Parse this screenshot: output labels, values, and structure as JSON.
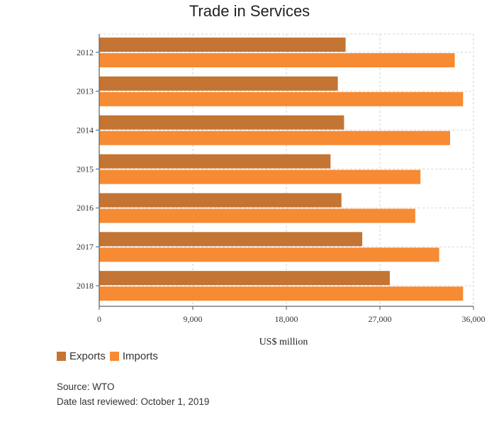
{
  "chart_data": {
    "type": "bar",
    "orientation": "horizontal",
    "title": "Trade in Services",
    "xlabel": "US$ million",
    "ylabel": "",
    "xlim": [
      0,
      36000
    ],
    "xticks": [
      "0",
      "9,000",
      "18,000",
      "27,000",
      "36,000"
    ],
    "xtick_values": [
      0,
      9000,
      18000,
      27000,
      36000
    ],
    "categories": [
      "2012",
      "2013",
      "2014",
      "2015",
      "2016",
      "2017",
      "2018"
    ],
    "series": [
      {
        "name": "Exports",
        "color": "#c47433",
        "values": [
          23700,
          22950,
          23550,
          22250,
          23300,
          25300,
          27950
        ]
      },
      {
        "name": "Imports",
        "color": "#f68b33",
        "values": [
          34200,
          35000,
          33750,
          30900,
          30400,
          32700,
          35000
        ]
      }
    ],
    "grid": true,
    "legend_position": "bottom-left"
  },
  "footer": {
    "source": "Source: WTO",
    "reviewed": "Date last reviewed: October 1, 2019"
  }
}
